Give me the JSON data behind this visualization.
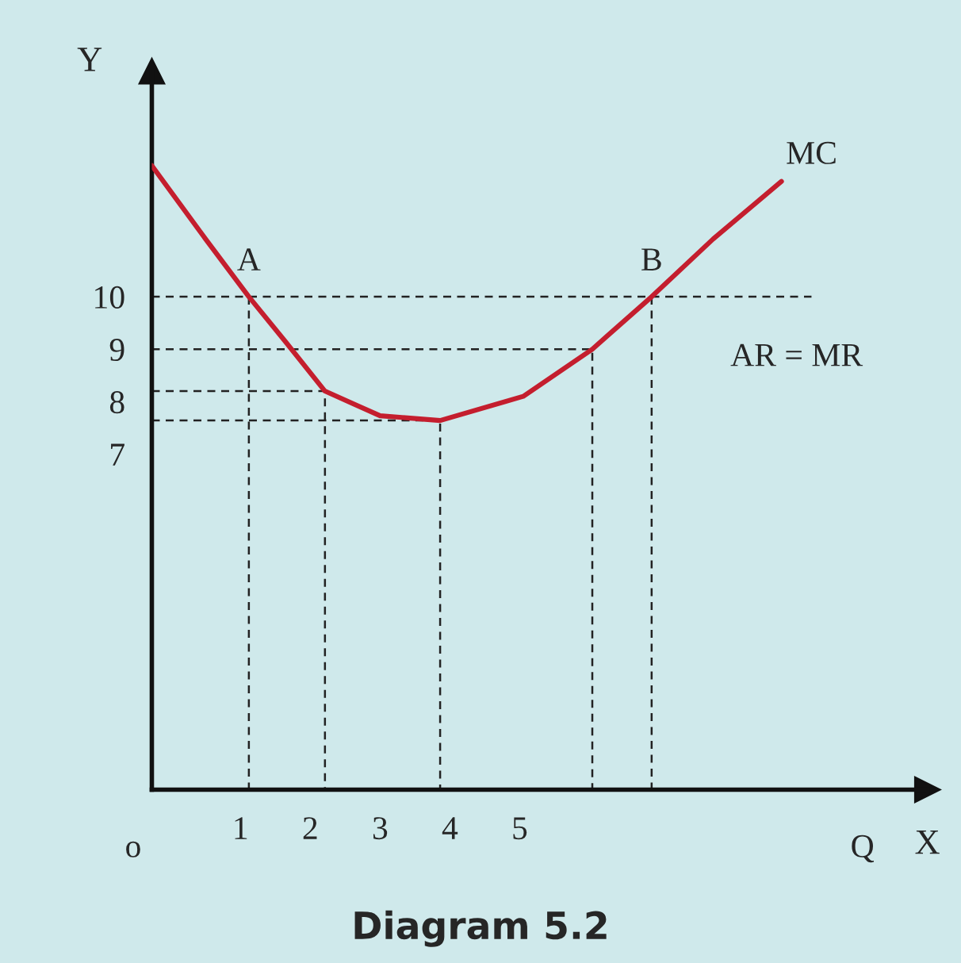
{
  "chart_data": {
    "type": "line",
    "title": "Diagram 5.2",
    "xlabel": "X",
    "ylabel": "Y",
    "xlim": [
      -0.27,
      10.84
    ],
    "ylim": [
      0.6,
      14.3
    ],
    "xticks": [
      1,
      2,
      3,
      4,
      5
    ],
    "yticks": [
      7,
      8,
      9,
      10
    ],
    "grid": false,
    "legend": false,
    "marker": "none",
    "series": [
      {
        "name": "MC",
        "color": "#c41e2e",
        "line_style": "solid",
        "x": [
          -0.27,
          0.5,
          1.12,
          1.64,
          2.21,
          3.0,
          3.86,
          5.05,
          6.04,
          6.89,
          7.77,
          8.75
        ],
        "values": [
          12.5,
          11.1,
          10,
          9.15,
          8.2,
          7.73,
          7.64,
          8.1,
          9,
          10,
          11.1,
          12.2
        ]
      },
      {
        "color": "#222222",
        "line_style": "dashed",
        "x": [
          -0.27,
          9.18
        ],
        "values": [
          10,
          10
        ]
      },
      {
        "color": "#222222",
        "line_style": "dashed",
        "x": [
          1.12,
          1.12
        ],
        "values": [
          10,
          0.6
        ]
      },
      {
        "color": "#222222",
        "line_style": "dashed",
        "x": [
          6.89,
          6.89
        ],
        "values": [
          10,
          0.6
        ]
      },
      {
        "color": "#222222",
        "line_style": "dashed",
        "x": [
          -0.27,
          6.04,
          6.04
        ],
        "values": [
          9,
          9,
          0.6
        ]
      },
      {
        "color": "#222222",
        "line_style": "dashed",
        "x": [
          -0.27,
          2.21,
          2.21
        ],
        "values": [
          8.2,
          8.2,
          0.6
        ]
      },
      {
        "color": "#222222",
        "line_style": "dashed",
        "x": [
          -0.27,
          3.86,
          3.86
        ],
        "values": [
          7.64,
          7.64,
          0.6
        ]
      }
    ],
    "annotations": [
      {
        "text": "A",
        "x": 1.12,
        "y": 10
      },
      {
        "text": "B",
        "x": 6.89,
        "y": 10
      },
      "AR = MR",
      "o",
      "Q"
    ]
  }
}
